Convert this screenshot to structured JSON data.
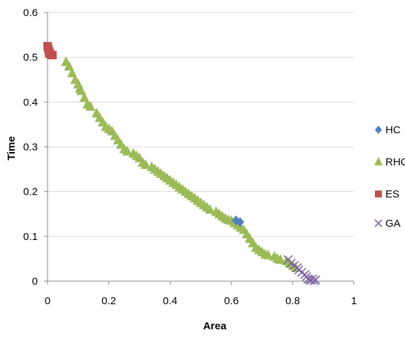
{
  "chart_data": {
    "type": "scatter",
    "title": "",
    "xlabel": "Area",
    "ylabel": "Time",
    "xlim": [
      0,
      1
    ],
    "ylim": [
      0,
      0.6
    ],
    "xticks": [
      0,
      0.2,
      0.4,
      0.6,
      0.8,
      1
    ],
    "yticks": [
      0,
      0.1,
      0.2,
      0.3,
      0.4,
      0.5,
      0.6
    ],
    "xtick_labels": [
      "0",
      "0.2",
      "0.4",
      "0.6",
      "0.8",
      "1"
    ],
    "ytick_labels": [
      "0",
      "0.1",
      "0.2",
      "0.3",
      "0.4",
      "0.5",
      "0.6"
    ],
    "grid": "horizontal",
    "legend": "right",
    "series": [
      {
        "name": "HC",
        "marker": "diamond",
        "color": "#4F81BD",
        "points": [
          [
            0.615,
            0.136
          ],
          [
            0.628,
            0.132
          ]
        ]
      },
      {
        "name": "RHC",
        "marker": "triangle",
        "color": "#9BBB59",
        "points": [
          [
            0.06,
            0.49
          ],
          [
            0.07,
            0.48
          ],
          [
            0.08,
            0.465
          ],
          [
            0.09,
            0.45
          ],
          [
            0.1,
            0.44
          ],
          [
            0.105,
            0.43
          ],
          [
            0.11,
            0.425
          ],
          [
            0.12,
            0.41
          ],
          [
            0.13,
            0.395
          ],
          [
            0.14,
            0.39
          ],
          [
            0.16,
            0.375
          ],
          [
            0.17,
            0.365
          ],
          [
            0.18,
            0.355
          ],
          [
            0.19,
            0.345
          ],
          [
            0.2,
            0.34
          ],
          [
            0.21,
            0.335
          ],
          [
            0.22,
            0.325
          ],
          [
            0.23,
            0.315
          ],
          [
            0.24,
            0.305
          ],
          [
            0.25,
            0.295
          ],
          [
            0.26,
            0.29
          ],
          [
            0.28,
            0.285
          ],
          [
            0.29,
            0.28
          ],
          [
            0.3,
            0.275
          ],
          [
            0.31,
            0.265
          ],
          [
            0.32,
            0.26
          ],
          [
            0.34,
            0.255
          ],
          [
            0.35,
            0.25
          ],
          [
            0.36,
            0.245
          ],
          [
            0.37,
            0.24
          ],
          [
            0.38,
            0.235
          ],
          [
            0.39,
            0.23
          ],
          [
            0.4,
            0.225
          ],
          [
            0.41,
            0.22
          ],
          [
            0.42,
            0.215
          ],
          [
            0.43,
            0.21
          ],
          [
            0.44,
            0.205
          ],
          [
            0.45,
            0.2
          ],
          [
            0.46,
            0.195
          ],
          [
            0.47,
            0.19
          ],
          [
            0.48,
            0.185
          ],
          [
            0.49,
            0.18
          ],
          [
            0.5,
            0.175
          ],
          [
            0.51,
            0.17
          ],
          [
            0.52,
            0.165
          ],
          [
            0.53,
            0.16
          ],
          [
            0.55,
            0.155
          ],
          [
            0.56,
            0.15
          ],
          [
            0.57,
            0.145
          ],
          [
            0.58,
            0.14
          ],
          [
            0.59,
            0.137
          ],
          [
            0.6,
            0.135
          ],
          [
            0.61,
            0.13
          ],
          [
            0.62,
            0.125
          ],
          [
            0.63,
            0.12
          ],
          [
            0.64,
            0.115
          ],
          [
            0.65,
            0.105
          ],
          [
            0.66,
            0.095
          ],
          [
            0.67,
            0.085
          ],
          [
            0.68,
            0.075
          ],
          [
            0.69,
            0.07
          ],
          [
            0.7,
            0.065
          ],
          [
            0.71,
            0.06
          ],
          [
            0.72,
            0.058
          ],
          [
            0.74,
            0.055
          ],
          [
            0.75,
            0.05
          ],
          [
            0.76,
            0.048
          ],
          [
            0.78,
            0.045
          ],
          [
            0.79,
            0.04
          ],
          [
            0.8,
            0.035
          ],
          [
            0.81,
            0.03
          ]
        ]
      },
      {
        "name": "ES",
        "marker": "square",
        "color": "#C0504D",
        "points": [
          [
            0.0,
            0.525
          ],
          [
            0.002,
            0.52
          ],
          [
            0.004,
            0.515
          ],
          [
            0.006,
            0.51
          ],
          [
            0.008,
            0.508
          ],
          [
            0.012,
            0.505
          ],
          [
            0.016,
            0.505
          ],
          [
            0.005,
            0.512
          ]
        ]
      },
      {
        "name": "GA",
        "marker": "x",
        "color": "#8064A2",
        "points": [
          [
            0.785,
            0.048
          ],
          [
            0.795,
            0.04
          ],
          [
            0.805,
            0.035
          ],
          [
            0.815,
            0.03
          ],
          [
            0.82,
            0.025
          ],
          [
            0.83,
            0.02
          ],
          [
            0.84,
            0.015
          ],
          [
            0.845,
            0.01
          ],
          [
            0.85,
            0.005
          ],
          [
            0.855,
            0.003
          ],
          [
            0.86,
            0.002
          ],
          [
            0.865,
            0.005
          ],
          [
            0.87,
            0.001
          ],
          [
            0.875,
            0.003
          ]
        ]
      }
    ]
  }
}
